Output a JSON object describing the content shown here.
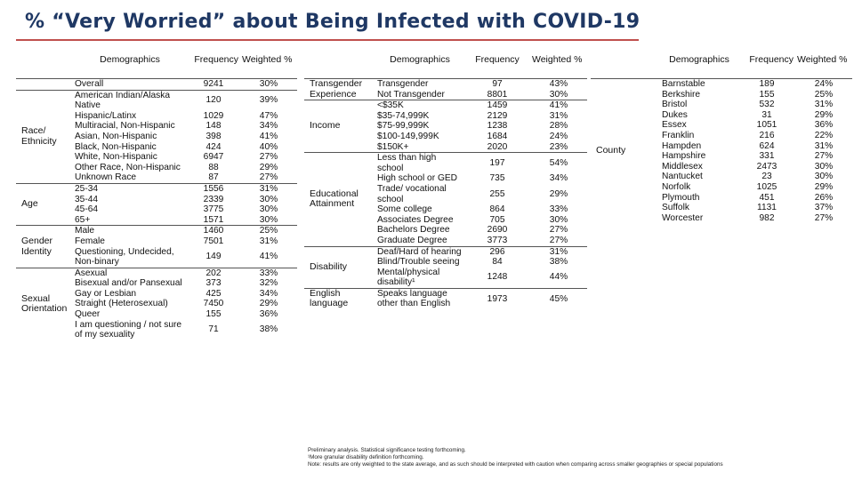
{
  "title": "% “Very Worried” about Being Infected with COVID-19",
  "header": {
    "demographics": "Demographics",
    "frequency": "Frequency",
    "weighted": "Weighted %"
  },
  "table1": [
    {
      "group": "",
      "label": "Overall",
      "freq": "9241",
      "pct": "30%"
    },
    {
      "group": "Race/ Ethnicity",
      "label": "American Indian/Alaska Native",
      "freq": "120",
      "pct": "39%"
    },
    {
      "group": "",
      "label": "Hispanic/Latinx",
      "freq": "1029",
      "pct": "47%"
    },
    {
      "group": "",
      "label": "Multiracial, Non-Hispanic",
      "freq": "148",
      "pct": "34%"
    },
    {
      "group": "",
      "label": "Asian, Non-Hispanic",
      "freq": "398",
      "pct": "41%"
    },
    {
      "group": "",
      "label": "Black, Non-Hispanic",
      "freq": "424",
      "pct": "40%"
    },
    {
      "group": "",
      "label": "White, Non-Hispanic",
      "freq": "6947",
      "pct": "27%"
    },
    {
      "group": "",
      "label": "Other Race, Non-Hispanic",
      "freq": "88",
      "pct": "29%"
    },
    {
      "group": "",
      "label": "Unknown Race",
      "freq": "87",
      "pct": "27%"
    },
    {
      "group": "Age",
      "label": "25-34",
      "freq": "1556",
      "pct": "31%"
    },
    {
      "group": "",
      "label": "35-44",
      "freq": "2339",
      "pct": "30%"
    },
    {
      "group": "",
      "label": "45-64",
      "freq": "3775",
      "pct": "30%"
    },
    {
      "group": "",
      "label": "65+",
      "freq": "1571",
      "pct": "30%"
    },
    {
      "group": "Gender Identity",
      "label": "Male",
      "freq": "1460",
      "pct": "25%"
    },
    {
      "group": "",
      "label": "Female",
      "freq": "7501",
      "pct": "31%"
    },
    {
      "group": "",
      "label": "Questioning, Undecided, Non-binary",
      "freq": "149",
      "pct": "41%"
    },
    {
      "group": "Sexual Orientation",
      "label": "Asexual",
      "freq": "202",
      "pct": "33%"
    },
    {
      "group": "",
      "label": "Bisexual and/or Pansexual",
      "freq": "373",
      "pct": "32%"
    },
    {
      "group": "",
      "label": "Gay or Lesbian",
      "freq": "425",
      "pct": "34%"
    },
    {
      "group": "",
      "label": "Straight (Heterosexual)",
      "freq": "7450",
      "pct": "29%"
    },
    {
      "group": "",
      "label": "Queer",
      "freq": "155",
      "pct": "36%"
    },
    {
      "group": "",
      "label": "I am questioning / not sure of my sexuality",
      "freq": "71",
      "pct": "38%"
    }
  ],
  "table2": [
    {
      "group": "Transgender Experience",
      "label": "Transgender",
      "freq": "97",
      "pct": "43%"
    },
    {
      "group": "",
      "label": "Not Transgender",
      "freq": "8801",
      "pct": "30%"
    },
    {
      "group": "Income",
      "label": "<$35K",
      "freq": "1459",
      "pct": "41%"
    },
    {
      "group": "",
      "label": "$35-74,999K",
      "freq": "2129",
      "pct": "31%"
    },
    {
      "group": "",
      "label": "$75-99,999K",
      "freq": "1238",
      "pct": "28%"
    },
    {
      "group": "",
      "label": "$100-149,999K",
      "freq": "1684",
      "pct": "24%"
    },
    {
      "group": "",
      "label": "$150K+",
      "freq": "2020",
      "pct": "23%"
    },
    {
      "group": "Educational Attainment",
      "label": "Less than high school",
      "freq": "197",
      "pct": "54%"
    },
    {
      "group": "",
      "label": "High school or GED",
      "freq": "735",
      "pct": "34%"
    },
    {
      "group": "",
      "label": "Trade/ vocational school",
      "freq": "255",
      "pct": "29%"
    },
    {
      "group": "",
      "label": "Some college",
      "freq": "864",
      "pct": "33%"
    },
    {
      "group": "",
      "label": "Associates Degree",
      "freq": "705",
      "pct": "30%"
    },
    {
      "group": "",
      "label": "Bachelors Degree",
      "freq": "2690",
      "pct": "27%"
    },
    {
      "group": "",
      "label": "Graduate Degree",
      "freq": "3773",
      "pct": "27%"
    },
    {
      "group": "Disability",
      "label": "Deaf/Hard of hearing",
      "freq": "296",
      "pct": "31%"
    },
    {
      "group": "",
      "label": "Blind/Trouble seeing",
      "freq": "84",
      "pct": "38%"
    },
    {
      "group": "",
      "label": "Mental/physical disability¹",
      "freq": "1248",
      "pct": "44%"
    },
    {
      "group": "English language",
      "label": "Speaks language other than English",
      "freq": "1973",
      "pct": "45%"
    }
  ],
  "table3": [
    {
      "group": "County",
      "label": "Barnstable",
      "freq": "189",
      "pct": "24%"
    },
    {
      "group": "",
      "label": "Berkshire",
      "freq": "155",
      "pct": "25%"
    },
    {
      "group": "",
      "label": "Bristol",
      "freq": "532",
      "pct": "31%"
    },
    {
      "group": "",
      "label": "Dukes",
      "freq": "31",
      "pct": "29%"
    },
    {
      "group": "",
      "label": "Essex",
      "freq": "1051",
      "pct": "36%"
    },
    {
      "group": "",
      "label": "Franklin",
      "freq": "216",
      "pct": "22%"
    },
    {
      "group": "",
      "label": "Hampden",
      "freq": "624",
      "pct": "31%"
    },
    {
      "group": "",
      "label": "Hampshire",
      "freq": "331",
      "pct": "27%"
    },
    {
      "group": "",
      "label": "Middlesex",
      "freq": "2473",
      "pct": "30%"
    },
    {
      "group": "",
      "label": "Nantucket",
      "freq": "23",
      "pct": "30%"
    },
    {
      "group": "",
      "label": "Norfolk",
      "freq": "1025",
      "pct": "29%"
    },
    {
      "group": "",
      "label": "Plymouth",
      "freq": "451",
      "pct": "26%"
    },
    {
      "group": "",
      "label": "Suffolk",
      "freq": "1131",
      "pct": "37%"
    },
    {
      "group": "",
      "label": "Worcester",
      "freq": "982",
      "pct": "27%"
    }
  ],
  "notes": [
    "Preliminary analysis. Statistical significance testing forthcoming.",
    "¹More granular disability definition forthcoming.",
    "Note: results are only weighted to the state average, and as such should be interpreted with caution when comparing across smaller geographies or special populations"
  ]
}
